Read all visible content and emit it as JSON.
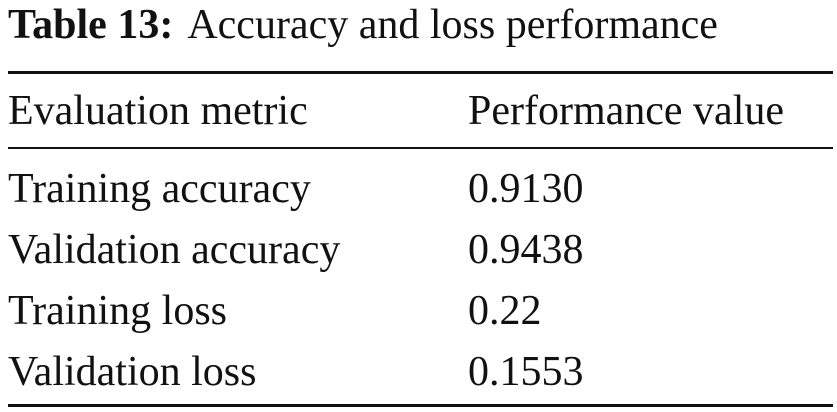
{
  "caption": {
    "label": "Table 13:",
    "text": "Accuracy and loss performance"
  },
  "table": {
    "header": [
      "Evaluation metric",
      "Performance value"
    ],
    "rows": [
      [
        "Training accuracy",
        "0.9130"
      ],
      [
        "Validation accuracy",
        "0.9438"
      ],
      [
        "Training loss",
        "0.22"
      ],
      [
        "Validation loss",
        "0.1553"
      ]
    ]
  }
}
